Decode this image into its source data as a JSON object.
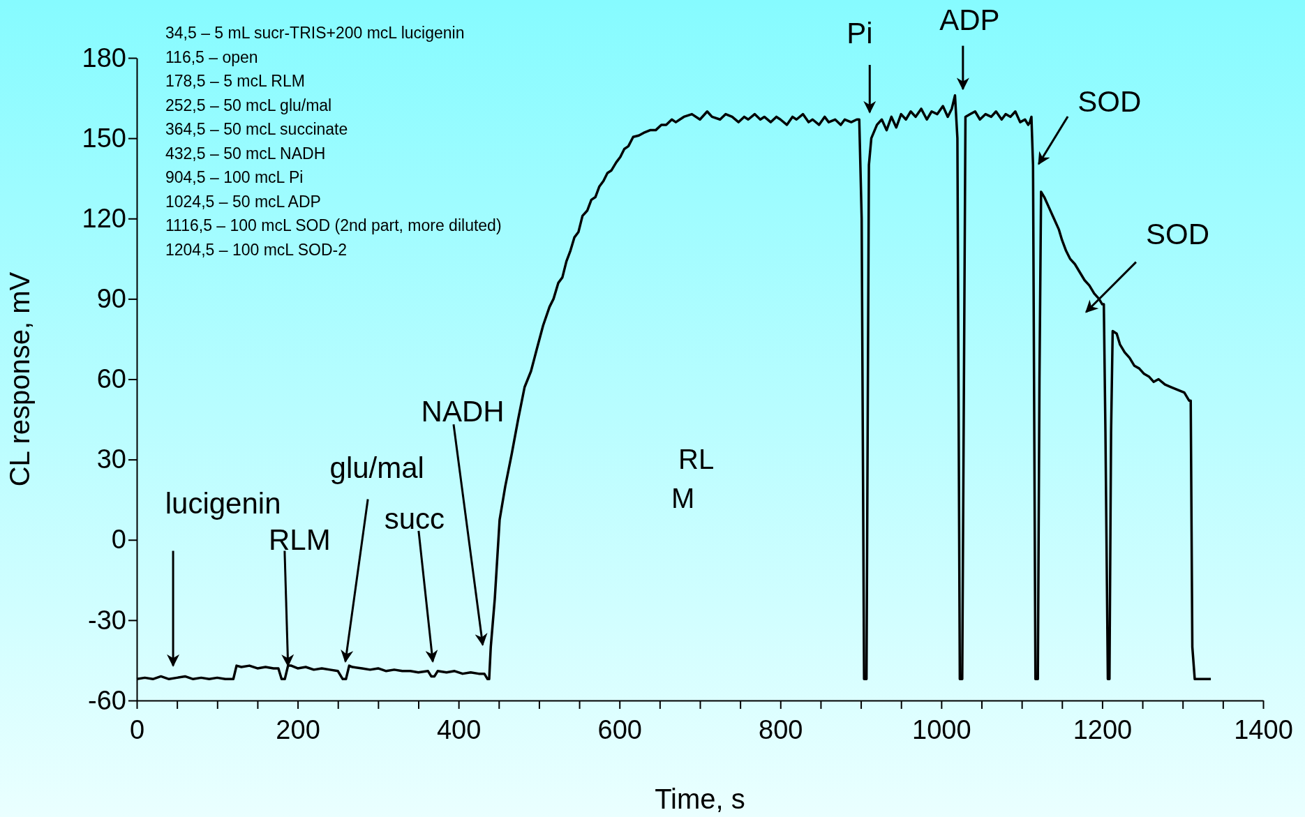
{
  "chart_data": {
    "type": "line",
    "xlabel": "Time, s",
    "ylabel": "CL response, mV",
    "xlim": [
      0,
      1400
    ],
    "ylim": [
      -60,
      180
    ],
    "xticks": [
      0,
      {
        "value": 50,
        "label": null
      },
      {
        "value": 100,
        "label": null
      },
      {
        "value": 150,
        "label": null
      },
      200,
      {
        "value": 250,
        "label": null
      },
      {
        "value": 300,
        "label": null
      },
      {
        "value": 350,
        "label": null
      },
      400,
      {
        "value": 450,
        "label": null
      },
      {
        "value": 500,
        "label": null
      },
      {
        "value": 550,
        "label": null
      },
      600,
      {
        "value": 650,
        "label": null
      },
      {
        "value": 700,
        "label": null
      },
      {
        "value": 750,
        "label": null
      },
      800,
      {
        "value": 850,
        "label": null
      },
      {
        "value": 900,
        "label": null
      },
      {
        "value": 950,
        "label": null
      },
      1000,
      {
        "value": 1050,
        "label": null
      },
      {
        "value": 1100,
        "label": null
      },
      {
        "value": 1150,
        "label": null
      },
      1200,
      {
        "value": 1250,
        "label": null
      },
      {
        "value": 1300,
        "label": null
      },
      {
        "value": 1350,
        "label": null
      },
      1400
    ],
    "yticks": [
      -60,
      -30,
      0,
      30,
      60,
      90,
      120,
      150,
      180
    ],
    "grid": false,
    "marker": "none",
    "line_style": "solid",
    "series": [
      {
        "color": "#000000",
        "x": [
          0,
          10,
          20,
          30,
          40,
          50,
          60,
          70,
          80,
          90,
          100,
          110,
          120,
          124,
          130,
          140,
          150,
          160,
          170,
          176,
          180,
          184,
          188,
          192,
          200,
          210,
          220,
          230,
          240,
          250,
          256,
          260,
          264,
          268,
          280,
          290,
          300,
          310,
          320,
          330,
          340,
          350,
          362,
          366,
          370,
          374,
          385,
          395,
          405,
          415,
          425,
          432,
          436,
          438,
          440,
          445,
          451,
          458,
          466,
          474,
          482,
          490,
          497,
          505,
          513,
          518,
          524,
          529,
          534,
          539,
          544,
          549,
          554,
          560,
          565,
          570,
          575,
          580,
          585,
          590,
          596,
          601,
          606,
          611,
          617,
          624,
          630,
          638,
          645,
          652,
          658,
          665,
          670,
          675,
          680,
          690,
          700,
          709,
          715,
          725,
          732,
          740,
          748,
          755,
          760,
          768,
          775,
          780,
          788,
          795,
          800,
          808,
          815,
          820,
          828,
          835,
          840,
          848,
          855,
          860,
          868,
          875,
          880,
          888,
          895,
          898,
          901,
          904,
          907,
          910,
          913,
          920,
          926,
          932,
          938,
          944,
          950,
          956,
          962,
          968,
          975,
          982,
          988,
          995,
          1002,
          1008,
          1013,
          1017,
          1020,
          1023,
          1026,
          1030,
          1036,
          1042,
          1048,
          1055,
          1062,
          1068,
          1075,
          1080,
          1086,
          1092,
          1098,
          1104,
          1108,
          1110,
          1112,
          1114,
          1117,
          1120,
          1122,
          1124,
          1128,
          1134,
          1140,
          1146,
          1150,
          1155,
          1160,
          1166,
          1172,
          1178,
          1184,
          1190,
          1196,
          1200,
          1202,
          1204,
          1207,
          1209,
          1211,
          1213,
          1218,
          1222,
          1228,
          1234,
          1240,
          1246,
          1252,
          1258,
          1264,
          1270,
          1278,
          1286,
          1294,
          1302,
          1306,
          1308,
          1310,
          1312,
          1315,
          1325,
          1335
        ],
        "values": [
          -52,
          -51.5,
          -52,
          -51,
          -52,
          -51.5,
          -51,
          -52,
          -51.5,
          -52,
          -51.5,
          -52,
          -52,
          -47,
          -47.5,
          -47,
          -48,
          -47.5,
          -48,
          -48,
          -52,
          -52,
          -47,
          -47,
          -48,
          -47.5,
          -48.5,
          -48,
          -48.5,
          -49,
          -52,
          -52,
          -47,
          -47.5,
          -48,
          -48.5,
          -48,
          -49,
          -48.5,
          -49,
          -49,
          -49.5,
          -49,
          -51,
          -51,
          -49,
          -49.5,
          -49,
          -50,
          -49.5,
          -50,
          -50,
          -52,
          -52,
          -40,
          -22,
          7.5,
          20,
          32,
          45,
          57,
          63,
          71,
          80,
          87,
          90,
          96,
          98,
          104,
          108,
          113,
          115,
          121,
          123,
          127,
          128,
          132,
          134,
          137,
          138,
          141,
          143,
          146,
          147,
          150.5,
          151,
          152,
          153,
          153,
          155,
          155,
          157,
          156,
          157,
          158,
          159,
          157,
          160,
          158,
          157,
          159,
          158,
          156,
          158,
          157,
          159,
          157,
          158,
          156,
          158,
          157,
          155,
          158,
          157,
          159,
          156,
          157,
          155,
          158,
          156,
          157,
          155,
          157,
          156,
          157,
          157,
          120,
          -52,
          -52,
          140,
          150,
          155,
          157,
          153,
          158,
          154,
          159,
          157,
          160,
          158,
          161,
          157,
          160,
          159,
          162,
          158,
          161,
          166,
          150,
          -52,
          -52,
          158,
          159,
          160,
          157,
          159,
          158,
          160,
          157,
          159,
          158,
          160,
          156,
          157,
          155,
          156,
          158,
          140,
          -52,
          -52,
          60,
          130,
          128,
          124,
          120,
          116,
          112,
          108,
          105,
          103,
          100,
          97,
          95,
          92,
          90,
          88,
          88,
          40,
          -52,
          -52,
          40,
          78,
          77,
          73,
          70,
          68,
          65,
          64,
          62,
          61,
          59,
          60,
          58,
          57,
          56,
          55,
          53,
          52,
          52,
          -40,
          -52,
          -52,
          -52
        ]
      }
    ],
    "annotations": [
      "34,5 – 5 mL sucr-TRIS+200 mcL lucigenin",
      "116,5 – open",
      "178,5 – 5 mcL RLM",
      "252,5 – 50 mcL glu/mal",
      "364,5 – 50 mcL succinate",
      "432,5 – 50 mcL NADH",
      "904,5 – 100 mcL Pi",
      "1024,5 – 50 mcL ADP",
      "1116,5 – 100 mcL SOD (2nd part, more diluted)",
      "1204,5 – 100 mcL SOD-2",
      "RL M",
      "lucigenin",
      {
        "text": "RLM",
        "x": 188,
        "y": -47
      },
      "glu/mal",
      "succ",
      "NADH",
      "Pi",
      "ADP",
      "SOD",
      "SOD"
    ]
  }
}
